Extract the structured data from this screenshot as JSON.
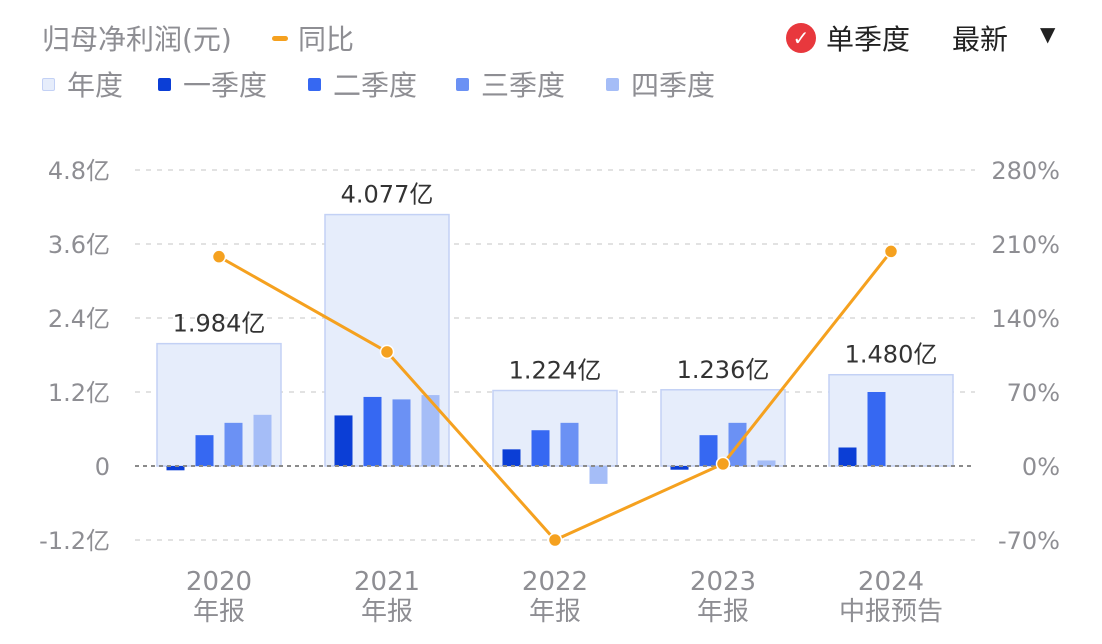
{
  "header": {
    "title": "归母净利润(元)",
    "yoy_label": "同比",
    "single_quarter_label": "单季度",
    "latest_label": "最新",
    "check_icon": "✓",
    "caret_icon": "▼"
  },
  "legend": [
    {
      "label": "年度",
      "color": "#e6edfb"
    },
    {
      "label": "一季度",
      "color": "#0b3ed6"
    },
    {
      "label": "二季度",
      "color": "#3668f2"
    },
    {
      "label": "三季度",
      "color": "#6b91f4"
    },
    {
      "label": "四季度",
      "color": "#a5bdf7"
    }
  ],
  "colors": {
    "annual_fill": "#e6edfb",
    "annual_stroke": "#c3d1f5",
    "line": "#f5a11f",
    "grid": "#d9d9d9",
    "zero_line": "#8a8a8a",
    "axis_text": "#8e8e93",
    "label_text": "#333333",
    "check": "#e8383d"
  },
  "chart_data": {
    "type": "bar",
    "categories": [
      [
        "2020",
        "年报"
      ],
      [
        "2021",
        "年报"
      ],
      [
        "2022",
        "年报"
      ],
      [
        "2023",
        "年报"
      ],
      [
        "2024",
        "中报预告"
      ]
    ],
    "annual": {
      "name": "年度",
      "values": [
        1.984,
        4.077,
        1.224,
        1.236,
        1.48
      ],
      "labels": [
        "1.984亿",
        "4.077亿",
        "1.224亿",
        "1.236亿",
        "1.480亿"
      ]
    },
    "quarters": [
      {
        "name": "一季度",
        "values": [
          -0.07,
          0.82,
          0.27,
          -0.06,
          0.3
        ]
      },
      {
        "name": "二季度",
        "values": [
          0.5,
          1.12,
          0.58,
          0.5,
          1.2
        ]
      },
      {
        "name": "三季度",
        "values": [
          0.7,
          1.08,
          0.7,
          0.7,
          null
        ]
      },
      {
        "name": "四季度",
        "values": [
          0.83,
          1.15,
          -0.29,
          0.09,
          null
        ]
      }
    ],
    "yoy": {
      "name": "同比",
      "values": [
        198,
        108,
        -70,
        2,
        203
      ]
    },
    "y_left": {
      "min": -1.2,
      "max": 4.8,
      "ticks": [
        -1.2,
        0,
        1.2,
        2.4,
        3.6,
        4.8
      ],
      "tick_labels": [
        "-1.2亿",
        "0",
        "1.2亿",
        "2.4亿",
        "3.6亿",
        "4.8亿"
      ]
    },
    "y_right": {
      "min": -70,
      "max": 280,
      "ticks": [
        -70,
        0,
        70,
        140,
        210,
        280
      ],
      "tick_labels": [
        "-70%",
        "0%",
        "70%",
        "140%",
        "210%",
        "280%"
      ]
    }
  }
}
